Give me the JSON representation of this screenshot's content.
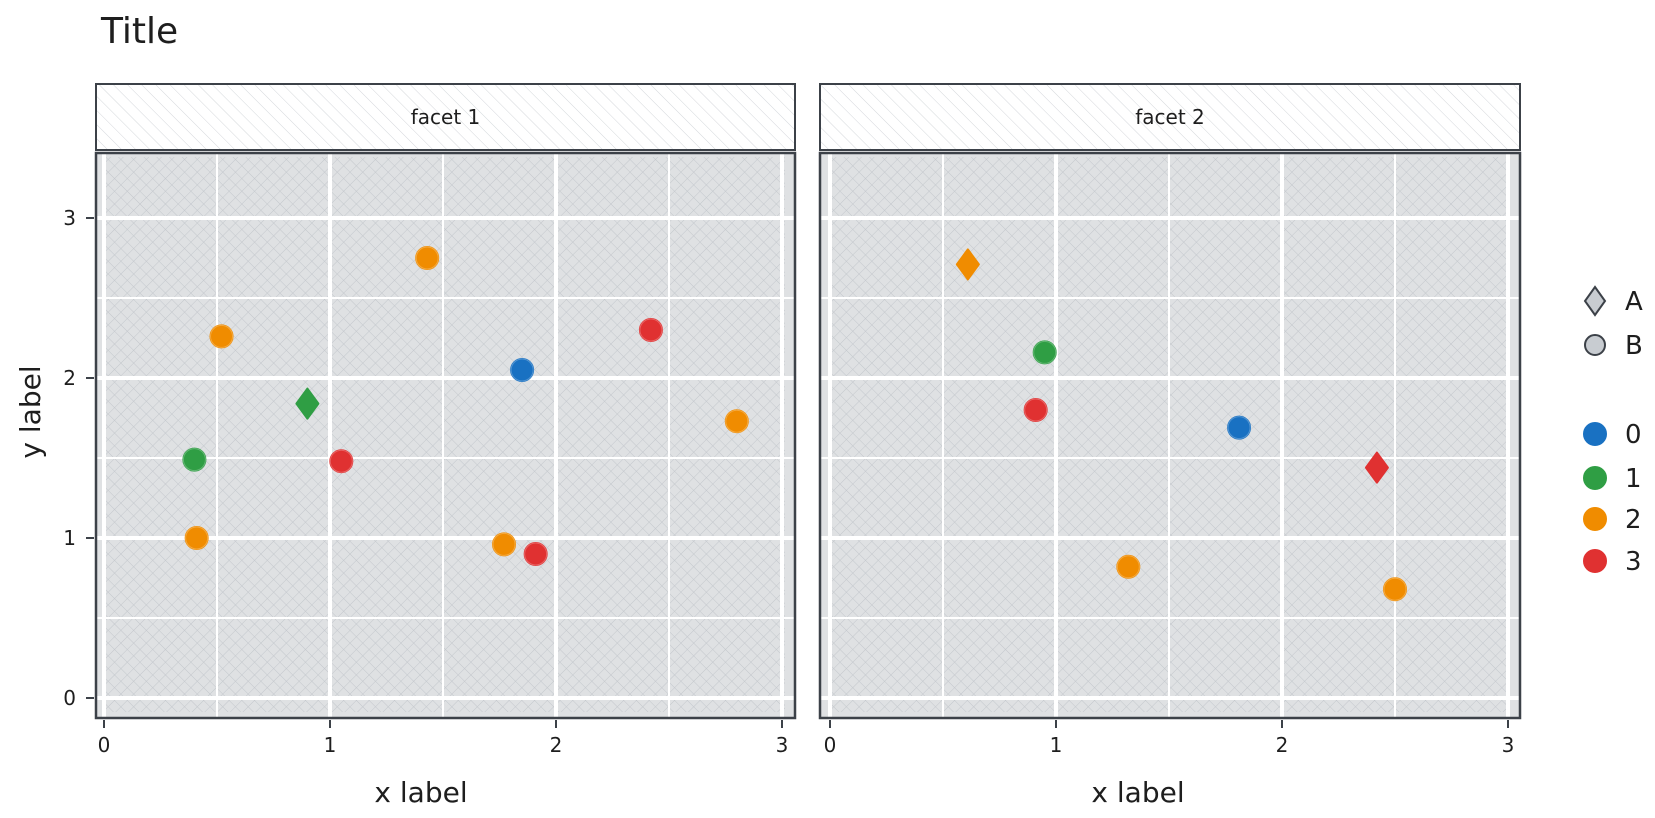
{
  "colors": {
    "panel": "#dfe1e3",
    "grid": "#ffffff",
    "frame": "#3c4148",
    "c0": "#1971c2",
    "c1": "#2f9e44",
    "c2": "#f08c00",
    "c3": "#e03131",
    "shapeLegend": "#c8ccd1"
  },
  "chart_data": {
    "type": "scatter",
    "title": "Title",
    "xlabel": "x label",
    "ylabel": "y label",
    "xlim": [
      0,
      3
    ],
    "ylim": [
      0,
      3
    ],
    "xticks": [
      0,
      1,
      2,
      3
    ],
    "yticks": [
      0,
      1,
      2,
      3
    ],
    "grid": true,
    "legend_position": "right",
    "legend_shape": {
      "items": [
        {
          "label": "A",
          "shape": "diamond"
        },
        {
          "label": "B",
          "shape": "circle"
        }
      ]
    },
    "legend_color": {
      "items": [
        {
          "label": "0",
          "color": "#1971c2"
        },
        {
          "label": "1",
          "color": "#2f9e44"
        },
        {
          "label": "2",
          "color": "#f08c00"
        },
        {
          "label": "3",
          "color": "#e03131"
        }
      ]
    },
    "facets": [
      {
        "name": "facet 1",
        "points": [
          {
            "x": 1.43,
            "y": 2.75,
            "group": "2",
            "shape": "B"
          },
          {
            "x": 0.52,
            "y": 2.26,
            "group": "2",
            "shape": "B"
          },
          {
            "x": 2.42,
            "y": 2.3,
            "group": "3",
            "shape": "B"
          },
          {
            "x": 1.85,
            "y": 2.05,
            "group": "0",
            "shape": "B"
          },
          {
            "x": 0.9,
            "y": 1.84,
            "group": "1",
            "shape": "A"
          },
          {
            "x": 2.8,
            "y": 1.73,
            "group": "2",
            "shape": "B"
          },
          {
            "x": 0.4,
            "y": 1.49,
            "group": "1",
            "shape": "B"
          },
          {
            "x": 1.05,
            "y": 1.48,
            "group": "3",
            "shape": "B"
          },
          {
            "x": 0.41,
            "y": 1.0,
            "group": "2",
            "shape": "B"
          },
          {
            "x": 1.77,
            "y": 0.96,
            "group": "2",
            "shape": "B"
          },
          {
            "x": 1.91,
            "y": 0.9,
            "group": "3",
            "shape": "B"
          }
        ]
      },
      {
        "name": "facet 2",
        "points": [
          {
            "x": 0.61,
            "y": 2.71,
            "group": "2",
            "shape": "A"
          },
          {
            "x": 0.95,
            "y": 2.16,
            "group": "1",
            "shape": "B"
          },
          {
            "x": 0.91,
            "y": 1.8,
            "group": "3",
            "shape": "B"
          },
          {
            "x": 1.81,
            "y": 1.69,
            "group": "0",
            "shape": "B"
          },
          {
            "x": 2.42,
            "y": 1.44,
            "group": "3",
            "shape": "A"
          },
          {
            "x": 1.32,
            "y": 0.82,
            "group": "2",
            "shape": "B"
          },
          {
            "x": 2.5,
            "y": 0.68,
            "group": "2",
            "shape": "B"
          }
        ]
      }
    ]
  }
}
